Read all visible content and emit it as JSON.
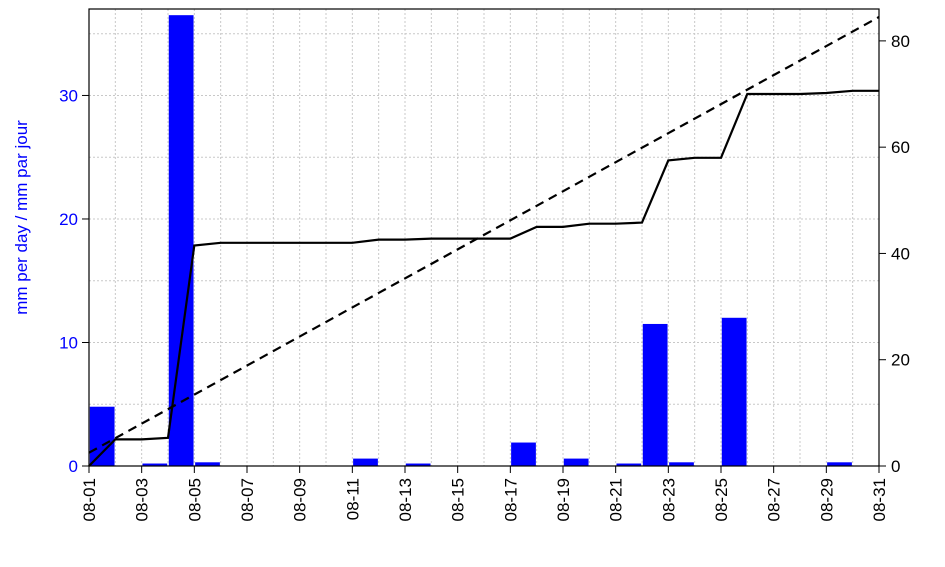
{
  "chart_data": {
    "type": "bar",
    "title": "",
    "ylabel_left": "mm per day / mm par jour",
    "ylabel_right": "",
    "colors": {
      "bars": "#0000ff",
      "left_axis_text": "#0000ff",
      "lines": "#000000",
      "grid": "#c8c8c8"
    },
    "grid": true,
    "x_tick_labels": [
      "08-01",
      "08-03",
      "08-05",
      "08-07",
      "08-09",
      "08-11",
      "08-13",
      "08-15",
      "08-17",
      "08-19",
      "08-21",
      "08-23",
      "08-25",
      "08-27",
      "08-29",
      "08-31"
    ],
    "y_left_ticks": [
      0,
      10,
      20,
      30
    ],
    "y_right_ticks": [
      0,
      20,
      40,
      60,
      80
    ],
    "ylim_left": [
      0,
      37
    ],
    "ylim_right": [
      0,
      86
    ],
    "xlim_days": [
      1,
      31
    ],
    "bars": [
      {
        "day": 1.5,
        "value": 4.8
      },
      {
        "day": 3.5,
        "value": 0.2
      },
      {
        "day": 4.5,
        "value": 36.5
      },
      {
        "day": 5.5,
        "value": 0.3
      },
      {
        "day": 11.5,
        "value": 0.6
      },
      {
        "day": 13.5,
        "value": 0.2
      },
      {
        "day": 17.5,
        "value": 1.9
      },
      {
        "day": 19.5,
        "value": 0.6
      },
      {
        "day": 21.5,
        "value": 0.2
      },
      {
        "day": 22.5,
        "value": 11.5
      },
      {
        "day": 23.5,
        "value": 0.3
      },
      {
        "day": 25.5,
        "value": 12.0
      },
      {
        "day": 29.5,
        "value": 0.3
      }
    ],
    "series": [
      {
        "style": "solid",
        "axis": "right",
        "points": [
          [
            1,
            0
          ],
          [
            2,
            5
          ],
          [
            3,
            5
          ],
          [
            4,
            5.3
          ],
          [
            5,
            41.5
          ],
          [
            6,
            42
          ],
          [
            7,
            42
          ],
          [
            8,
            42
          ],
          [
            9,
            42
          ],
          [
            10,
            42
          ],
          [
            11,
            42
          ],
          [
            12,
            42.6
          ],
          [
            13,
            42.6
          ],
          [
            14,
            42.8
          ],
          [
            15,
            42.8
          ],
          [
            16,
            42.8
          ],
          [
            17,
            42.8
          ],
          [
            18,
            45
          ],
          [
            19,
            45
          ],
          [
            20,
            45.6
          ],
          [
            21,
            45.6
          ],
          [
            22,
            45.8
          ],
          [
            23,
            57.5
          ],
          [
            24,
            58
          ],
          [
            25,
            58
          ],
          [
            26,
            70
          ],
          [
            27,
            70
          ],
          [
            28,
            70
          ],
          [
            29,
            70.2
          ],
          [
            30,
            70.6
          ],
          [
            31,
            70.6
          ]
        ]
      },
      {
        "style": "dashed",
        "axis": "right",
        "points": [
          [
            1,
            2.5
          ],
          [
            31,
            84.5
          ]
        ]
      }
    ]
  }
}
